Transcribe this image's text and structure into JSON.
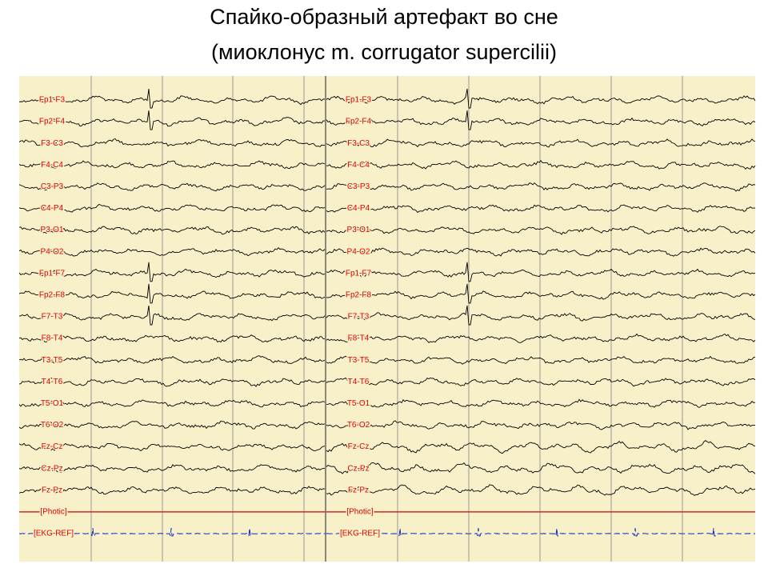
{
  "title": {
    "line1": "Спайко-образный артефакт во сне",
    "line2": "(миоклонус m. corrugator supercilii)"
  },
  "panels": [
    {
      "channels": [
        "Fp1-F3",
        "Fp2-F4",
        "F3-C3",
        "F4-C4",
        "C3-P3",
        "C4-P4",
        "P3-O1",
        "P4-O2",
        "Fp1-F7",
        "Fp2-F8",
        "F7-T3",
        "F8-T4",
        "T3-T5",
        "T4-T6",
        "T5-O1",
        "T6-O2",
        "Fz-Cz",
        "Cz-Pz",
        "Fz-Pz",
        "[Photic]",
        "[EKG-REF]"
      ]
    },
    {
      "channels": [
        "Fp1-F3",
        "Fp2-F4",
        "F3-C3",
        "F4-C4",
        "C3-P3",
        "C4-P4",
        "P3-O1",
        "P4-O2",
        "Fp1-F7",
        "Fp2-F8",
        "F7-T3",
        "F8-T4",
        "T3-T5",
        "T4-T6",
        "T5-O1",
        "T6-O2",
        "Fz-Cz",
        "Cz-Pz",
        "Fz-Pz",
        "[Photic]",
        "[EKG-REF]"
      ]
    }
  ]
}
